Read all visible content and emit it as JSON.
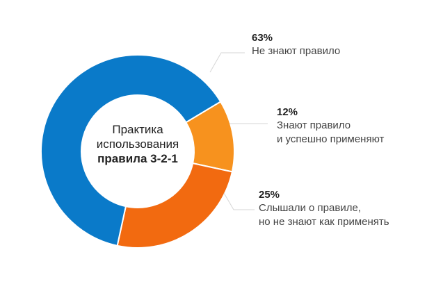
{
  "chart_data": {
    "type": "pie",
    "style": "donut",
    "title": "Практика использования правила 3-2-1",
    "title_lines": [
      "Практика",
      "использования",
      "правила 3-2-1"
    ],
    "slices": [
      {
        "label": "Не знают правило",
        "value": 63,
        "pct_label": "63%",
        "color": "#0A7AC9"
      },
      {
        "label": "Знают правило и успешно применяют",
        "label_lines": [
          "Знают правило",
          "и успешно применяют"
        ],
        "value": 12,
        "pct_label": "12%",
        "color": "#F7921E"
      },
      {
        "label": "Слышали о правиле, но не знают как применять",
        "label_lines": [
          "Слышали о правиле,",
          "но не знают как применять"
        ],
        "value": 25,
        "pct_label": "25%",
        "color": "#F26A10"
      }
    ]
  }
}
